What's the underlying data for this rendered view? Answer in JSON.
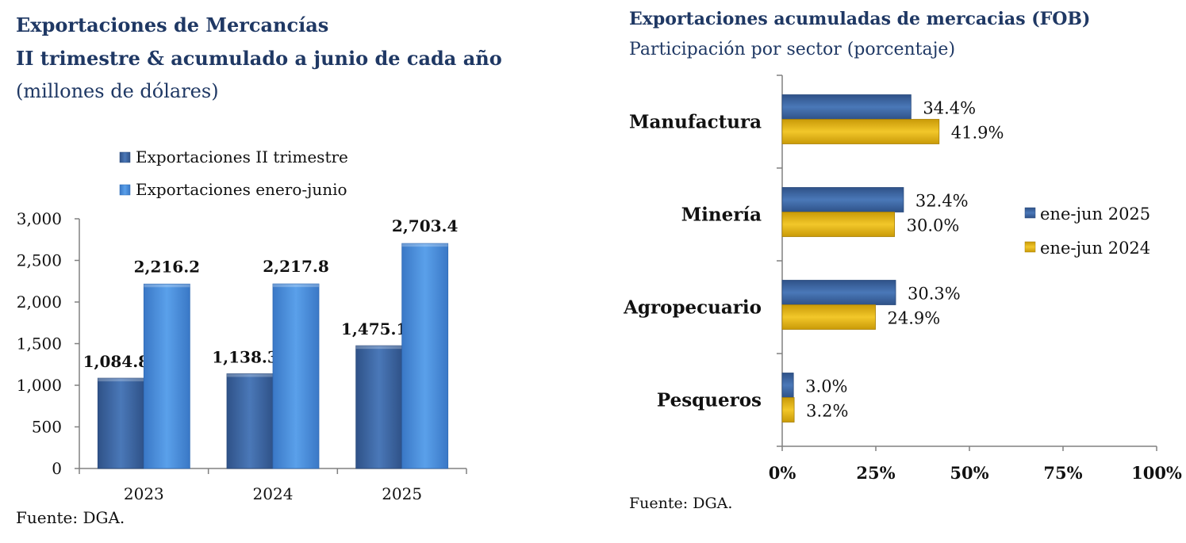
{
  "colors": {
    "title": "#1f3864",
    "series_dark_blue": "#3c66a3",
    "series_light_blue": "#4a8ddc",
    "series_gold": "#e0b416",
    "axis": "#808080",
    "text": "#111111"
  },
  "left_chart": {
    "title_line1": "Exportaciones de Mercancías",
    "title_line2": "II trimestre & acumulado a junio de cada año",
    "subtitle": "(millones de dólares)",
    "source": "Fuente: DGA."
  },
  "right_chart": {
    "title": "Exportaciones acumuladas de mercacias (FOB)",
    "subtitle": "Participación por sector (porcentaje)",
    "source": "Fuente: DGA."
  },
  "chart_data": [
    {
      "type": "bar",
      "orientation": "vertical",
      "title": "Exportaciones de Mercancías II trimestre & acumulado a junio de cada año",
      "subtitle": "(millones de dólares)",
      "categories": [
        "2023",
        "2024",
        "2025"
      ],
      "series": [
        {
          "name": "Exportaciones II trimestre",
          "values": [
            1084.8,
            1138.3,
            1475.1
          ],
          "labels": [
            "1,084.8",
            "1,138.3",
            "1,475.1"
          ],
          "color": "#3c66a3"
        },
        {
          "name": "Exportaciones enero-junio",
          "values": [
            2216.2,
            2217.8,
            2703.4
          ],
          "labels": [
            "2,216.2",
            "2,217.8",
            "2,703.4"
          ],
          "color": "#4a8ddc"
        }
      ],
      "ylim": [
        0,
        3000
      ],
      "yticks": [
        0,
        500,
        1000,
        1500,
        2000,
        2500,
        3000
      ],
      "ytick_labels": [
        "0",
        "500",
        "1,000",
        "1,500",
        "2,000",
        "2,500",
        "3,000"
      ],
      "legend": "top",
      "grid": false
    },
    {
      "type": "bar",
      "orientation": "horizontal",
      "title": "Exportaciones acumuladas de mercacias (FOB)",
      "subtitle": "Participación por sector (porcentaje)",
      "categories": [
        "Manufactura",
        "Minería",
        "Agropecuario",
        "Pesqueros"
      ],
      "series": [
        {
          "name": "ene-jun 2025",
          "values": [
            34.4,
            32.4,
            30.3,
            3.0
          ],
          "labels": [
            "34.4%",
            "32.4%",
            "30.3%",
            "3.0%"
          ],
          "color": "#3c66a3"
        },
        {
          "name": "ene-jun 2024",
          "values": [
            41.9,
            30.0,
            24.9,
            3.2
          ],
          "labels": [
            "41.9%",
            "30.0%",
            "24.9%",
            "3.2%"
          ],
          "color": "#e0b416"
        }
      ],
      "xlim": [
        0,
        100
      ],
      "xticks": [
        0,
        25,
        50,
        75,
        100
      ],
      "xtick_labels": [
        "0%",
        "25%",
        "50%",
        "75%",
        "100%"
      ],
      "legend": "right",
      "grid": false
    }
  ]
}
